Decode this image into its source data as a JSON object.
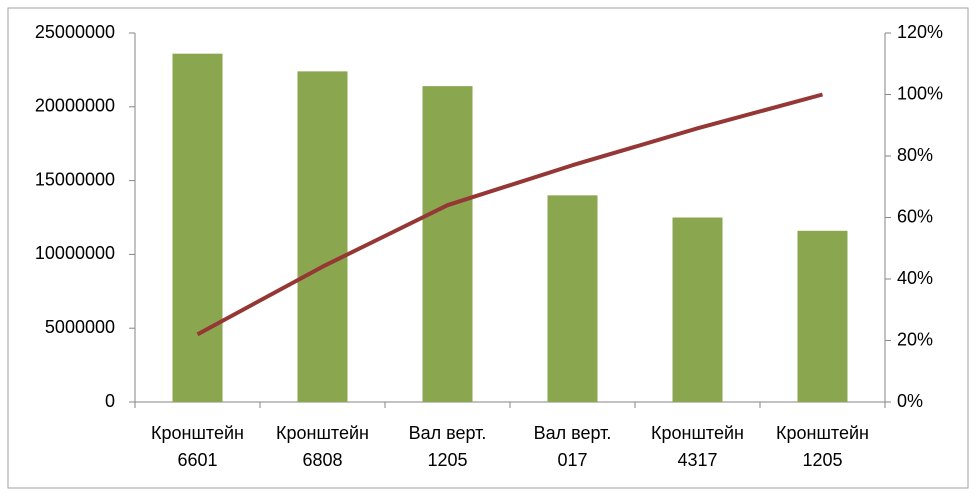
{
  "chart_data": {
    "type": "bar_line",
    "categories": [
      [
        "Кронштейн",
        "6601"
      ],
      [
        "Кронштейн",
        "6808"
      ],
      [
        "Вал верт.",
        "1205"
      ],
      [
        "Вал верт.",
        "017"
      ],
      [
        "Кронштейн",
        "4317"
      ],
      [
        "Кронштейн",
        "1205"
      ]
    ],
    "series": [
      {
        "type": "bar",
        "color": "#8aa64e",
        "values": [
          23600000,
          22400000,
          21400000,
          14000000,
          12500000,
          11600000
        ]
      },
      {
        "type": "line",
        "axis": "y2",
        "color": "#953735",
        "values": [
          22,
          44,
          64,
          77,
          89,
          100
        ]
      }
    ],
    "ylim": [
      0,
      25000000
    ],
    "yticks": [
      0,
      5000000,
      10000000,
      15000000,
      20000000,
      25000000
    ],
    "y2lim": [
      0,
      120
    ],
    "y2ticks": [
      {
        "value": 0,
        "label": "0%"
      },
      {
        "value": 20,
        "label": "20%"
      },
      {
        "value": 40,
        "label": "40%"
      },
      {
        "value": 60,
        "label": "60%"
      },
      {
        "value": 80,
        "label": "80%"
      },
      {
        "value": 100,
        "label": "100%"
      },
      {
        "value": 120,
        "label": "120%"
      }
    ]
  }
}
